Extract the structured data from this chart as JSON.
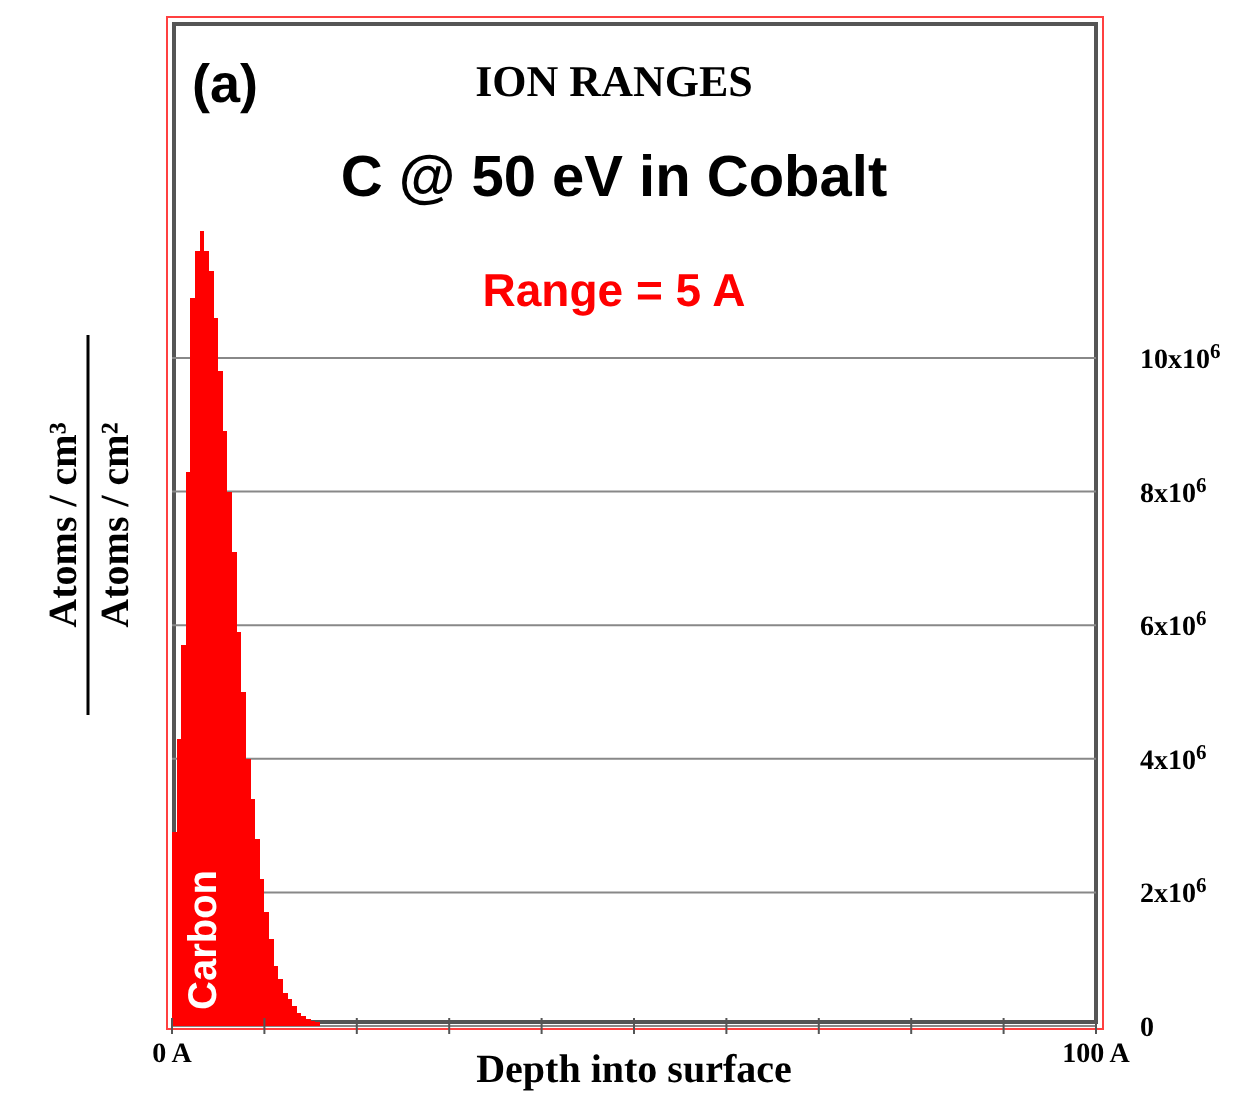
{
  "chart_data": {
    "type": "histogram",
    "title": "ION RANGES",
    "subtitle": "C @ 50 eV in Cobalt",
    "xlabel": "Depth into surface",
    "ylabel": "Atoms / cm³\nAtoms / cm²",
    "annotations": [
      "(a)",
      "Range = 5 A"
    ],
    "bins": [
      0,
      0.5,
      1,
      1.5,
      2,
      2.5,
      3,
      3.5,
      4,
      4.5,
      5,
      5.5,
      6,
      6.5,
      7,
      7.5,
      8,
      8.5,
      9,
      9.5,
      10,
      10.5,
      11,
      11.5,
      12,
      12.5,
      13,
      13.5,
      14,
      14.5,
      15,
      15.5,
      16
    ],
    "series": [
      {
        "name": "Carbon",
        "color": "#ff0000",
        "values": [
          2900000.0,
          4300000.0,
          5700000.0,
          8300000.0,
          10900000.0,
          11600000.0,
          11900000.0,
          11600000.0,
          11300000.0,
          10600000.0,
          9800000.0,
          8900000.0,
          8000000.0,
          7100000.0,
          5900000.0,
          5000000.0,
          4000000.0,
          3400000.0,
          2800000.0,
          2200000.0,
          1700000.0,
          1300000.0,
          900000.0,
          700000.0,
          500000.0,
          400000.0,
          300000.0,
          200000.0,
          150000.0,
          100000.0,
          80000.0,
          60000.0
        ]
      }
    ],
    "xlim": [
      0,
      100
    ],
    "xticks": [
      {
        "value": 0,
        "label": "0 A"
      },
      {
        "value": 10,
        "label": null
      },
      {
        "value": 20,
        "label": null
      },
      {
        "value": 30,
        "label": null
      },
      {
        "value": 40,
        "label": null
      },
      {
        "value": 50,
        "label": null
      },
      {
        "value": 60,
        "label": null
      },
      {
        "value": 70,
        "label": null
      },
      {
        "value": 80,
        "label": null
      },
      {
        "value": 90,
        "label": null
      },
      {
        "value": 100,
        "label": "100 A"
      }
    ],
    "ylim": [
      0,
      15000000
    ],
    "yticks": [
      {
        "value": 0,
        "label": "0"
      },
      {
        "value": 2000000,
        "label": "2x10$^{6}$"
      },
      {
        "value": 4000000,
        "label": "4x10$^{6}$"
      },
      {
        "value": 6000000,
        "label": "6x10$^{6}$"
      },
      {
        "value": 8000000,
        "label": "8x10$^{6}$"
      },
      {
        "value": 10000000,
        "label": "10x10$^{6}$"
      }
    ],
    "grid": "y",
    "legend": false
  }
}
